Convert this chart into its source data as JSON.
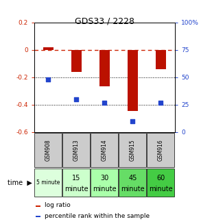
{
  "title": "GDS33 / 2228",
  "categories": [
    "GSM908",
    "GSM913",
    "GSM914",
    "GSM915",
    "GSM916"
  ],
  "time_labels_top": [
    "5 minute",
    "15",
    "30",
    "45",
    "60"
  ],
  "time_labels_bot": [
    "",
    "minute",
    "minute",
    "minute",
    "minute"
  ],
  "log_ratio": [
    0.02,
    -0.16,
    -0.265,
    -0.445,
    -0.14
  ],
  "percentile_rank": [
    48,
    30,
    27,
    10,
    27
  ],
  "ylim_left": [
    -0.6,
    0.2
  ],
  "ylim_right": [
    0,
    100
  ],
  "bar_color": "#bb1100",
  "dot_color": "#2244cc",
  "dashed_line_color": "#cc2200",
  "dotted_line_color": "#000000",
  "left_axis_color": "#cc2200",
  "right_axis_color": "#2244cc",
  "cell_bg_gsm": "#cccccc",
  "time_bg_colors": [
    "#ddffdd",
    "#ccffcc",
    "#aaffaa",
    "#66dd66",
    "#44cc44"
  ],
  "legend_log_color": "#cc2200",
  "legend_pct_color": "#2244cc"
}
